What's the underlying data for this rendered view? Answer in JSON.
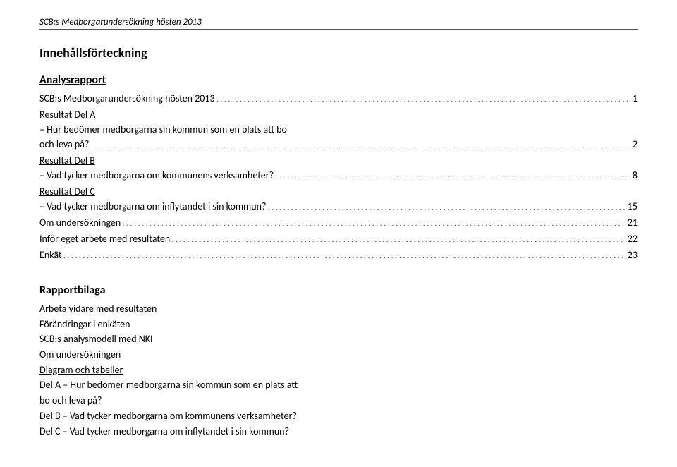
{
  "header": "SCB:s Medborgarundersökning hösten 2013",
  "title": "Innehållsförteckning",
  "sections": {
    "analys": {
      "heading": "Analysrapport",
      "entries": [
        {
          "text": "SCB:s Medborgarundersökning hösten 2013",
          "page": "1"
        },
        {
          "label": "Resultat Del A",
          "sub": "– Hur bedömer medborgarna sin kommun som en plats att bo",
          "sub2": "och leva på?",
          "page": "2"
        },
        {
          "label": "Resultat Del B",
          "sub": "– Vad tycker medborgarna om kommunens verksamheter?",
          "page": "8"
        },
        {
          "label": "Resultat Del C",
          "sub": "– Vad tycker medborgarna om inflytandet i sin kommun?",
          "page": "15"
        },
        {
          "text": "Om undersökningen",
          "page": "21"
        },
        {
          "text": "Inför eget arbete med resultaten",
          "page": "22"
        },
        {
          "text": "Enkät",
          "page": "23"
        }
      ]
    },
    "bilaga": {
      "heading": "Rapportbilaga",
      "items": [
        {
          "text": "Arbeta vidare med resultaten",
          "underline": true
        },
        {
          "text": "Förändringar i enkäten"
        },
        {
          "text": "SCB:s analysmodell med NKI"
        },
        {
          "text": "Om undersökningen"
        },
        {
          "text": "Diagram och tabeller",
          "underline": true
        },
        {
          "text": "Del A – Hur bedömer medborgarna sin kommun som en plats att"
        },
        {
          "text": "bo och leva på?"
        },
        {
          "text": "Del B – Vad tycker medborgarna om kommunens verksamheter?"
        },
        {
          "text": "Del C – Vad tycker medborgarna om inflytandet i sin kommun?"
        }
      ]
    }
  }
}
